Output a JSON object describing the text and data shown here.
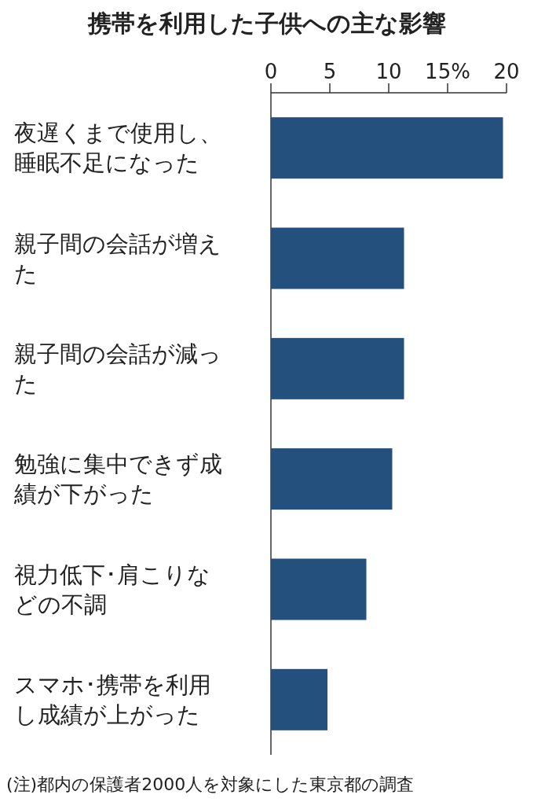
{
  "chart_data": {
    "type": "bar",
    "orientation": "horizontal",
    "title": "携帯を利用した子供への主な影響",
    "categories": [
      "夜遅くまで使用し、睡眠不足になった",
      "親子間の会話が増えた",
      "親子間の会話が減った",
      "勉強に集中できず成績が下がった",
      "視力低下･肩こりなどの不調",
      "スマホ･携帯を利用し成績が上がった"
    ],
    "values": [
      19.7,
      11.3,
      11.3,
      10.3,
      8.1,
      4.8
    ],
    "color": "#23507d",
    "xlim": [
      0,
      20
    ],
    "xticks": [
      0,
      5,
      10,
      {
        "value": 15,
        "label": "15%"
      },
      20
    ],
    "annotations": [
      "(注)都内の保護者2000人を対象にした東京都の調査"
    ]
  }
}
